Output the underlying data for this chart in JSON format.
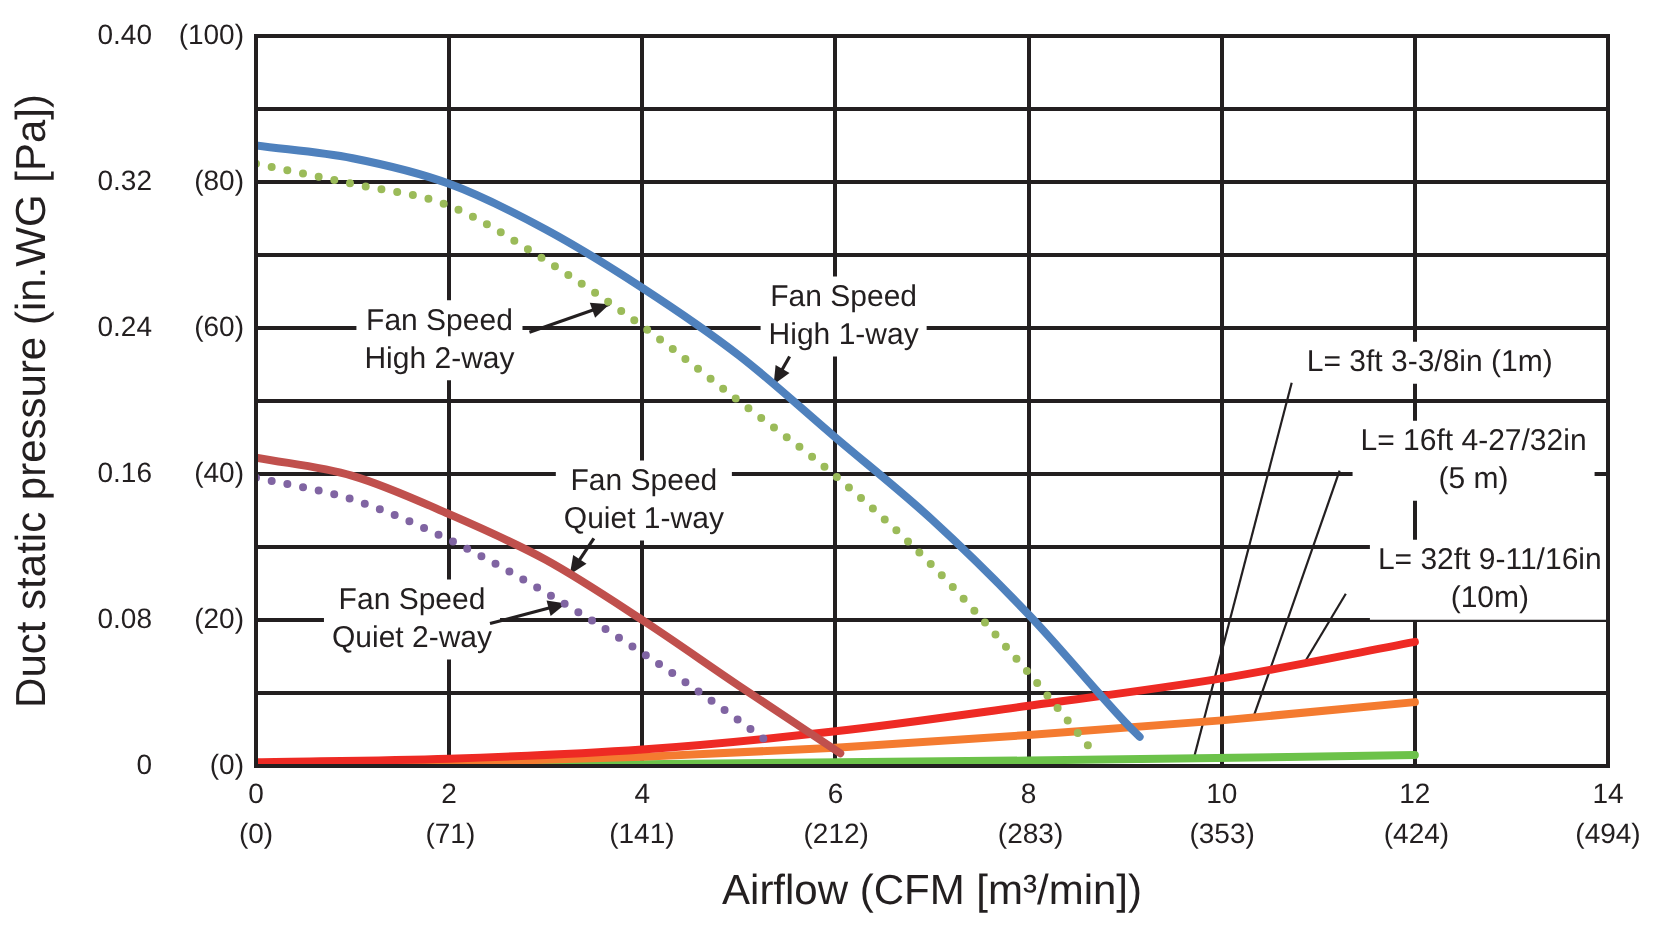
{
  "chart_data": {
    "type": "line",
    "xlabel": "Airflow (CFM [m³/min])",
    "ylabel": "Duct static pressure (in.WG [Pa])",
    "xlim": [
      0,
      14
    ],
    "xticks": [
      0,
      2,
      4,
      6,
      8,
      10,
      12,
      14
    ],
    "x2lim": [
      0,
      494
    ],
    "x2ticks": [
      {
        "value": 0,
        "label": "(0)"
      },
      {
        "value": 71,
        "label": "(71)"
      },
      {
        "value": 141,
        "label": "(141)"
      },
      {
        "value": 212,
        "label": "(212)"
      },
      {
        "value": 283,
        "label": "(283)"
      },
      {
        "value": 353,
        "label": "(353)"
      },
      {
        "value": 424,
        "label": "(424)"
      },
      {
        "value": 494,
        "label": "(494)"
      }
    ],
    "ylim": [
      0,
      0.4
    ],
    "yticks": [
      0,
      {
        "value": 0.04,
        "label": null
      },
      0.08,
      {
        "value": 0.12,
        "label": null
      },
      0.16,
      {
        "value": 0.2,
        "label": null
      },
      0.24,
      {
        "value": 0.28,
        "label": null
      },
      0.32,
      {
        "value": 0.36,
        "label": null
      },
      {
        "value": 0.4,
        "label": "0.40"
      }
    ],
    "y2lim": [
      0,
      100
    ],
    "y2ticks": [
      {
        "value": 0,
        "label": "(0)"
      },
      {
        "value": 20,
        "label": "(20)"
      },
      {
        "value": 40,
        "label": "(40)"
      },
      {
        "value": 60,
        "label": "(60)"
      },
      {
        "value": 80,
        "label": "(80)"
      },
      {
        "value": 100,
        "label": "(100)"
      }
    ],
    "grid": true,
    "series": [
      {
        "color": "#4f81bd",
        "line_style": "solid",
        "x": [
          0,
          1,
          2,
          3,
          4,
          5,
          6,
          7,
          8,
          9,
          9.15
        ],
        "values": [
          0.34,
          0.333,
          0.319,
          0.294,
          0.262,
          0.225,
          0.18,
          0.135,
          0.083,
          0.024,
          0.016
        ]
      },
      {
        "color": "#9bbb59",
        "line_style": "dotted",
        "x": [
          0,
          1,
          2,
          3,
          4,
          5,
          6,
          7,
          8,
          8.65
        ],
        "values": [
          0.33,
          0.319,
          0.307,
          0.277,
          0.241,
          0.2,
          0.159,
          0.11,
          0.051,
          0.009
        ]
      },
      {
        "color": "#c0504d",
        "line_style": "solid",
        "x": [
          0,
          1,
          2,
          3,
          4,
          5,
          6.05
        ],
        "values": [
          0.169,
          0.159,
          0.138,
          0.113,
          0.08,
          0.044,
          0.007
        ]
      },
      {
        "color": "#8064a2",
        "line_style": "dotted",
        "x": [
          0,
          1,
          2,
          3,
          4,
          5,
          5.28
        ],
        "values": [
          0.158,
          0.146,
          0.124,
          0.095,
          0.062,
          0.025,
          0.014
        ]
      },
      {
        "color": "#ee2a24",
        "line_style": "solid",
        "x": [
          0,
          2,
          4,
          6,
          8,
          10,
          12
        ],
        "values": [
          0.002,
          0.004,
          0.009,
          0.019,
          0.033,
          0.048,
          0.068
        ]
      },
      {
        "color": "#f47b30",
        "line_style": "solid",
        "x": [
          0,
          2,
          4,
          6,
          8,
          10,
          12
        ],
        "values": [
          0.001,
          0.002,
          0.005,
          0.01,
          0.017,
          0.025,
          0.035
        ]
      },
      {
        "color": "#6cc24a",
        "line_style": "solid",
        "x": [
          0,
          4,
          8,
          12
        ],
        "values": [
          0,
          0.001,
          0.003,
          0.006
        ]
      }
    ],
    "annotations": [
      {
        "text": "Fan Speed\nHigh 1-way",
        "x": 5.36,
        "y": 0.209
      },
      {
        "text": "Fan Speed\nHigh 2-way",
        "x": 3.66,
        "y": 0.253
      },
      {
        "text": "Fan Speed\nQuiet 1-way",
        "x": 3.25,
        "y": 0.105
      },
      {
        "text": "Fan Speed\nQuiet 2-way",
        "x": 3.21,
        "y": 0.089
      },
      {
        "text": "L= 3ft 3-3/8in (1m)",
        "x": 9.71,
        "y": 0.004
      },
      {
        "text": "L= 16ft 4-27/32in\n(5 m)",
        "x": 10.33,
        "y": 0.027
      },
      {
        "text": "L= 32ft 9-11/16in\n(10m)",
        "x": 10.85,
        "y": 0.056
      }
    ]
  }
}
